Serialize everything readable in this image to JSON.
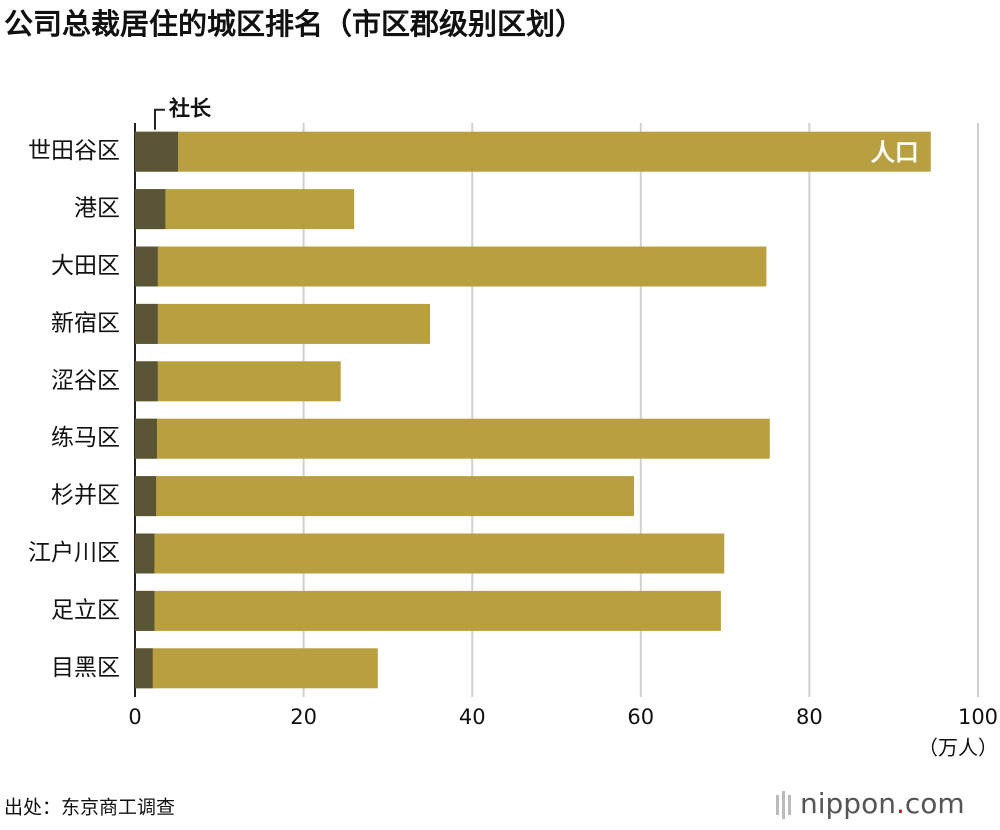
{
  "chart_data": {
    "type": "bar",
    "orientation": "horizontal",
    "overlap": true,
    "title": "公司总裁居住的城区排名（市区郡级别区划）",
    "categories": [
      "世田谷区",
      "港区",
      "大田区",
      "新宿区",
      "涩谷区",
      "练马区",
      "杉并区",
      "江户川区",
      "足立区",
      "目黑区"
    ],
    "series": [
      {
        "name": "人口",
        "color": "#b8a040",
        "values": [
          94.4,
          26.0,
          74.9,
          35.0,
          24.4,
          75.3,
          59.2,
          69.9,
          69.5,
          28.8
        ]
      },
      {
        "name": "社长",
        "color": "#5a5535",
        "values": [
          5.1,
          3.6,
          2.7,
          2.7,
          2.7,
          2.6,
          2.5,
          2.3,
          2.3,
          2.1
        ]
      }
    ],
    "xlim": [
      0,
      100
    ],
    "xticks": [
      0,
      20,
      40,
      60,
      80,
      100
    ],
    "grid": true,
    "unit_label": "（万人）",
    "source": "出处：东京商工调查",
    "logo": [
      "nippon",
      ".",
      "com"
    ]
  }
}
